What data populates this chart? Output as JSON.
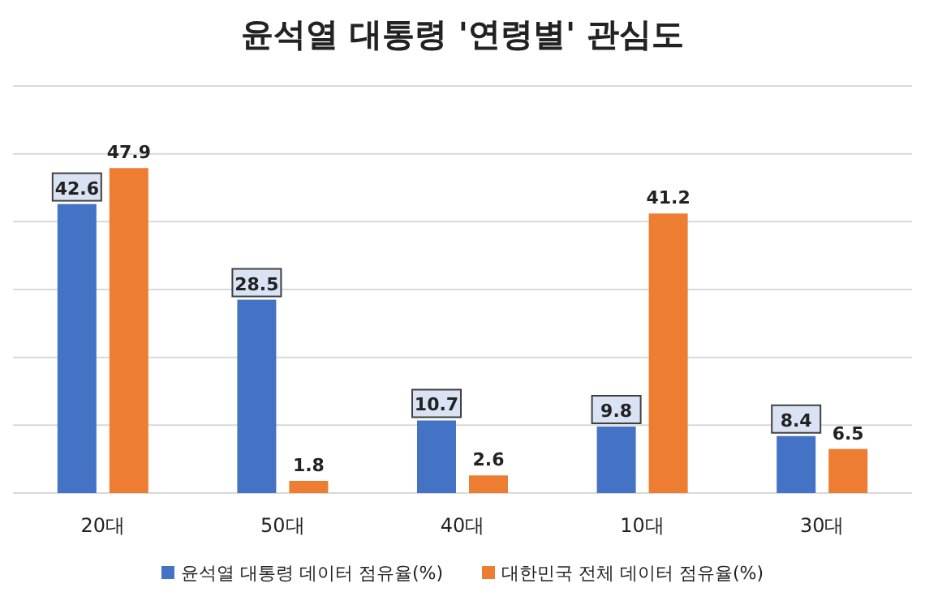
{
  "chart_data": {
    "type": "bar",
    "title": "윤석열 대통령 '연령별' 관심도",
    "categories": [
      "20대",
      "50대",
      "40대",
      "10대",
      "30대"
    ],
    "series": [
      {
        "name": "윤석열 대통령 데이터 점유율(%)",
        "color": "#4472c4",
        "values": [
          42.6,
          28.5,
          10.7,
          9.8,
          8.4
        ]
      },
      {
        "name": "대한민국 전체 데이터 점유율(%)",
        "color": "#ed7d31",
        "values": [
          47.9,
          1.8,
          2.6,
          41.2,
          6.5
        ]
      }
    ],
    "ylim": [
      0,
      60
    ],
    "yticks": [
      {
        "value": 0,
        "label": null
      },
      {
        "value": 10,
        "label": null
      },
      {
        "value": 20,
        "label": null
      },
      {
        "value": 30,
        "label": null
      },
      {
        "value": 40,
        "label": null
      },
      {
        "value": 50,
        "label": null
      },
      {
        "value": 60,
        "label": null
      }
    ],
    "tick_labels": "x",
    "grid": "y",
    "data_labels": true,
    "legend": "bottom"
  }
}
